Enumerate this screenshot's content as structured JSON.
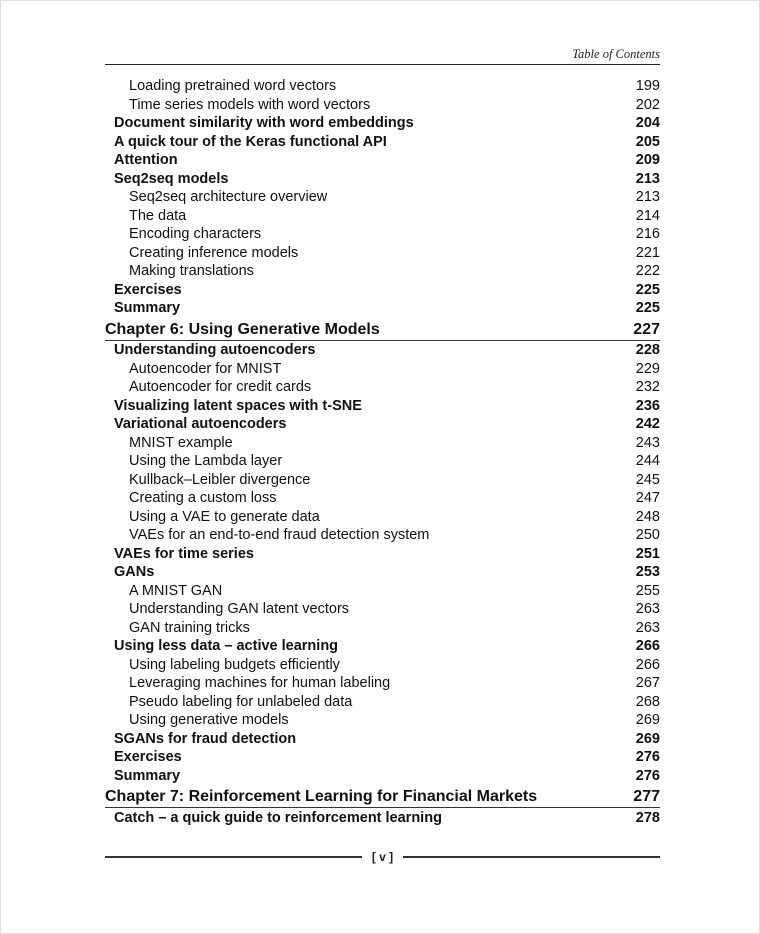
{
  "header": {
    "running_title": "Table of Contents"
  },
  "entries": [
    {
      "level": 2,
      "title": "Loading pretrained word vectors",
      "page": "199"
    },
    {
      "level": 2,
      "title": "Time series models with word vectors",
      "page": "202"
    },
    {
      "level": 1,
      "title": "Document similarity with word embeddings",
      "page": "204"
    },
    {
      "level": 1,
      "title": "A quick tour of the Keras functional API",
      "page": "205"
    },
    {
      "level": 1,
      "title": "Attention",
      "page": "209"
    },
    {
      "level": 1,
      "title": "Seq2seq models",
      "page": "213"
    },
    {
      "level": 2,
      "title": "Seq2seq architecture overview",
      "page": "213"
    },
    {
      "level": 2,
      "title": "The data",
      "page": "214"
    },
    {
      "level": 2,
      "title": "Encoding characters",
      "page": "216"
    },
    {
      "level": 2,
      "title": "Creating inference models",
      "page": "221"
    },
    {
      "level": 2,
      "title": "Making translations",
      "page": "222"
    },
    {
      "level": 1,
      "title": "Exercises",
      "page": "225"
    },
    {
      "level": 1,
      "title": "Summary",
      "page": "225"
    },
    {
      "level": 0,
      "title": "Chapter 6: Using Generative Models",
      "page": "227"
    },
    {
      "level": 1,
      "title": "Understanding autoencoders",
      "page": "228"
    },
    {
      "level": 2,
      "title": "Autoencoder for MNIST",
      "page": "229"
    },
    {
      "level": 2,
      "title": "Autoencoder for credit cards",
      "page": "232"
    },
    {
      "level": 1,
      "title": "Visualizing latent spaces with t-SNE",
      "page": "236"
    },
    {
      "level": 1,
      "title": "Variational autoencoders",
      "page": "242"
    },
    {
      "level": 2,
      "title": "MNIST example",
      "page": "243"
    },
    {
      "level": 2,
      "title": "Using the Lambda layer",
      "page": "244"
    },
    {
      "level": 2,
      "title": "Kullback–Leibler divergence",
      "page": "245"
    },
    {
      "level": 2,
      "title": "Creating a custom loss",
      "page": "247"
    },
    {
      "level": 2,
      "title": "Using a VAE to generate data",
      "page": "248"
    },
    {
      "level": 2,
      "title": "VAEs for an end-to-end fraud detection system",
      "page": "250"
    },
    {
      "level": 1,
      "title": "VAEs for time series",
      "page": "251"
    },
    {
      "level": 1,
      "title": "GANs",
      "page": "253"
    },
    {
      "level": 2,
      "title": "A MNIST GAN",
      "page": "255"
    },
    {
      "level": 2,
      "title": "Understanding GAN latent vectors",
      "page": "263"
    },
    {
      "level": 2,
      "title": "GAN training tricks",
      "page": "263"
    },
    {
      "level": 1,
      "title": "Using less data – active learning",
      "page": "266"
    },
    {
      "level": 2,
      "title": "Using labeling budgets efficiently",
      "page": "266"
    },
    {
      "level": 2,
      "title": "Leveraging machines for human labeling",
      "page": "267"
    },
    {
      "level": 2,
      "title": "Pseudo labeling for unlabeled data",
      "page": "268"
    },
    {
      "level": 2,
      "title": "Using generative models",
      "page": "269"
    },
    {
      "level": 1,
      "title": "SGANs for fraud detection",
      "page": "269"
    },
    {
      "level": 1,
      "title": "Exercises",
      "page": "276"
    },
    {
      "level": 1,
      "title": "Summary",
      "page": "276"
    },
    {
      "level": 0,
      "title": "Chapter 7: Reinforcement Learning for Financial Markets",
      "page": "277"
    },
    {
      "level": 1,
      "title": "Catch – a quick guide to reinforcement learning",
      "page": "278"
    }
  ],
  "footer": {
    "page_number": "[ v ]"
  }
}
